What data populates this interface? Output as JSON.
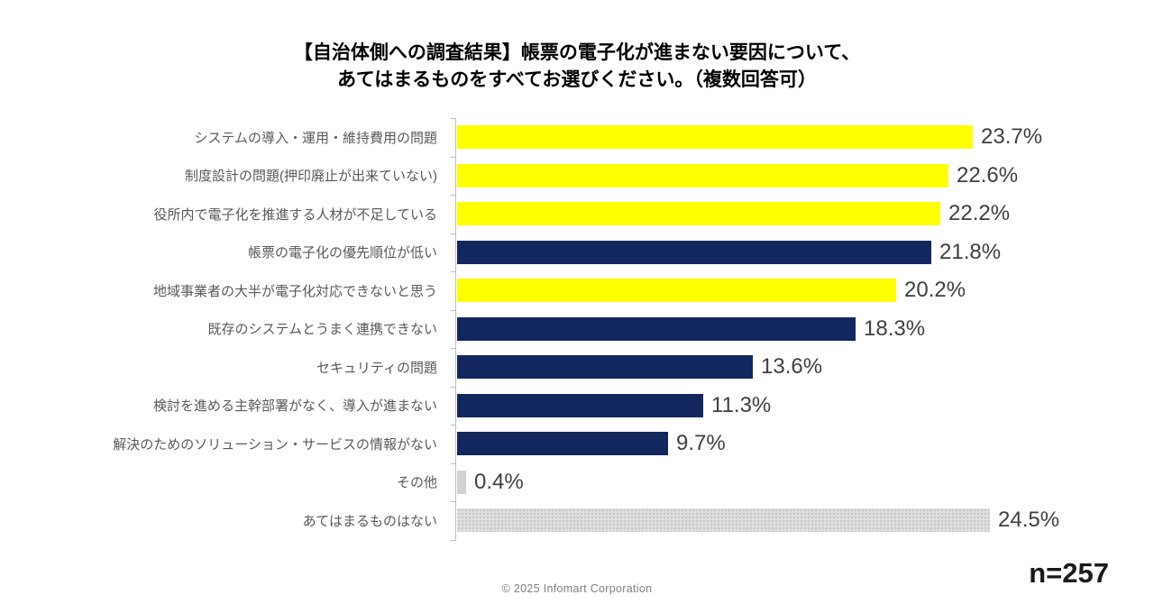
{
  "title": {
    "line1": "【自治体側への調査結果】帳票の電子化が進まない要因について、",
    "line2": "あてはまるものをすべてお選びください。（複数回答可）"
  },
  "chart_data": {
    "type": "bar",
    "orientation": "horizontal",
    "unit": "%",
    "categories": [
      "システムの導入・運用・維持費用の問題",
      "制度設計の問題(押印廃止が出来ていない)",
      "役所内で電子化を推進する人材が不足している",
      "帳票の電子化の優先順位が低い",
      "地域事業者の大半が電子化対応できないと思う",
      "既存のシステムとうまく連携できない",
      "セキュリティの問題",
      "検討を進める主幹部署がなく、導入が進まない",
      "解決のためのソリューション・サービスの情報がない",
      "その他",
      "あてはまるものはない"
    ],
    "values": [
      23.7,
      22.6,
      22.2,
      21.8,
      20.2,
      18.3,
      13.6,
      11.3,
      9.7,
      0.4,
      24.5
    ],
    "value_labels": [
      "23.7%",
      "22.6%",
      "22.2%",
      "21.8%",
      "20.2%",
      "18.3%",
      "13.6%",
      "11.3%",
      "9.7%",
      "0.4%",
      "24.5%"
    ],
    "bar_fills": [
      "yellow",
      "yellow",
      "yellow",
      "navy",
      "yellow",
      "navy",
      "navy",
      "navy",
      "navy",
      "gray",
      "gray-dotted"
    ],
    "colors": {
      "yellow": "#FFFF00",
      "navy": "#12275E",
      "gray": "#D2D2D2",
      "gray_dotted_bg": "#DEDEDE",
      "gray_dot": "#C2C2C2",
      "axis": "#BFBFBF"
    },
    "xlim": [
      0,
      25
    ],
    "gridlines": false,
    "legend": false,
    "sample_size": "n=257"
  },
  "footer": {
    "copyright": "© 2025 Infomart Corporation",
    "n_label": "n=257"
  }
}
